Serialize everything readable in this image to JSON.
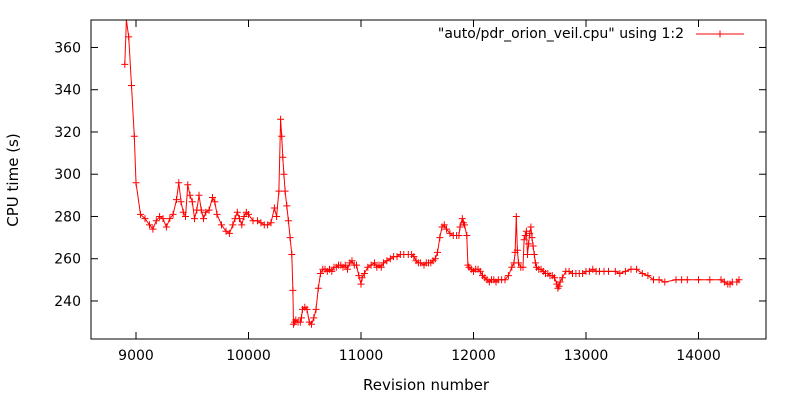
{
  "chart_data": {
    "type": "line",
    "xlabel": "Revision number",
    "ylabel": "CPU time (s)",
    "xlim": [
      8600,
      14600
    ],
    "ylim": [
      222,
      373
    ],
    "x_ticks": [
      9000,
      10000,
      11000,
      12000,
      13000,
      14000
    ],
    "y_ticks": [
      240,
      260,
      280,
      300,
      320,
      340,
      360
    ],
    "grid": false,
    "legend_position": "top-right",
    "line_color": "#ff0000",
    "series": [
      {
        "name": "\"auto/pdr_orion_veil.cpu\" using 1:2",
        "points": [
          [
            8900,
            352
          ],
          [
            8915,
            373
          ],
          [
            8935,
            365
          ],
          [
            8960,
            342
          ],
          [
            8985,
            318
          ],
          [
            9000,
            296
          ],
          [
            9040,
            281
          ],
          [
            9080,
            279
          ],
          [
            9120,
            276
          ],
          [
            9150,
            274
          ],
          [
            9180,
            278
          ],
          [
            9210,
            280
          ],
          [
            9240,
            279
          ],
          [
            9270,
            275
          ],
          [
            9300,
            279
          ],
          [
            9330,
            281
          ],
          [
            9360,
            288
          ],
          [
            9380,
            296
          ],
          [
            9400,
            287
          ],
          [
            9420,
            282
          ],
          [
            9440,
            280
          ],
          [
            9460,
            295
          ],
          [
            9480,
            290
          ],
          [
            9500,
            287
          ],
          [
            9520,
            279
          ],
          [
            9540,
            283
          ],
          [
            9560,
            290
          ],
          [
            9580,
            283
          ],
          [
            9600,
            279
          ],
          [
            9620,
            282
          ],
          [
            9650,
            283
          ],
          [
            9680,
            289
          ],
          [
            9700,
            287
          ],
          [
            9720,
            281
          ],
          [
            9760,
            276
          ],
          [
            9800,
            273
          ],
          [
            9830,
            272
          ],
          [
            9860,
            276
          ],
          [
            9880,
            279
          ],
          [
            9900,
            282
          ],
          [
            9920,
            279
          ],
          [
            9940,
            276
          ],
          [
            9960,
            280
          ],
          [
            9980,
            282
          ],
          [
            10000,
            281
          ],
          [
            10040,
            278
          ],
          [
            10080,
            278
          ],
          [
            10110,
            277
          ],
          [
            10140,
            276
          ],
          [
            10170,
            276
          ],
          [
            10200,
            277
          ],
          [
            10230,
            284
          ],
          [
            10250,
            280
          ],
          [
            10270,
            292
          ],
          [
            10285,
            326
          ],
          [
            10295,
            318
          ],
          [
            10305,
            308
          ],
          [
            10315,
            300
          ],
          [
            10325,
            292
          ],
          [
            10340,
            285
          ],
          [
            10355,
            278
          ],
          [
            10370,
            270
          ],
          [
            10385,
            262
          ],
          [
            10395,
            245
          ],
          [
            10400,
            229
          ],
          [
            10410,
            230
          ],
          [
            10420,
            231
          ],
          [
            10440,
            230
          ],
          [
            10460,
            230
          ],
          [
            10470,
            232
          ],
          [
            10480,
            236
          ],
          [
            10500,
            237
          ],
          [
            10520,
            236
          ],
          [
            10540,
            230
          ],
          [
            10560,
            229
          ],
          [
            10580,
            232
          ],
          [
            10600,
            236
          ],
          [
            10620,
            246
          ],
          [
            10640,
            253
          ],
          [
            10660,
            255
          ],
          [
            10680,
            255
          ],
          [
            10700,
            254
          ],
          [
            10720,
            255
          ],
          [
            10740,
            254
          ],
          [
            10760,
            256
          ],
          [
            10780,
            256
          ],
          [
            10800,
            257
          ],
          [
            10820,
            257
          ],
          [
            10840,
            256
          ],
          [
            10860,
            257
          ],
          [
            10880,
            255
          ],
          [
            10900,
            258
          ],
          [
            10920,
            259
          ],
          [
            10940,
            257
          ],
          [
            10960,
            257
          ],
          [
            10980,
            252
          ],
          [
            11000,
            248
          ],
          [
            11010,
            251
          ],
          [
            11030,
            253
          ],
          [
            11060,
            256
          ],
          [
            11090,
            257
          ],
          [
            11120,
            258
          ],
          [
            11140,
            256
          ],
          [
            11160,
            257
          ],
          [
            11180,
            256
          ],
          [
            11200,
            258
          ],
          [
            11230,
            259
          ],
          [
            11260,
            260
          ],
          [
            11290,
            261
          ],
          [
            11320,
            261
          ],
          [
            11350,
            262
          ],
          [
            11380,
            262
          ],
          [
            11420,
            262
          ],
          [
            11450,
            262
          ],
          [
            11470,
            261
          ],
          [
            11490,
            259
          ],
          [
            11510,
            258
          ],
          [
            11530,
            258
          ],
          [
            11560,
            257
          ],
          [
            11580,
            258
          ],
          [
            11600,
            258
          ],
          [
            11620,
            258
          ],
          [
            11640,
            259
          ],
          [
            11660,
            260
          ],
          [
            11680,
            263
          ],
          [
            11700,
            270
          ],
          [
            11720,
            275
          ],
          [
            11740,
            276
          ],
          [
            11760,
            274
          ],
          [
            11790,
            272
          ],
          [
            11820,
            271
          ],
          [
            11850,
            271
          ],
          [
            11870,
            271
          ],
          [
            11880,
            275
          ],
          [
            11900,
            279
          ],
          [
            11910,
            277
          ],
          [
            11920,
            276
          ],
          [
            11940,
            271
          ],
          [
            11950,
            257
          ],
          [
            11960,
            256
          ],
          [
            11980,
            255
          ],
          [
            12000,
            254
          ],
          [
            12020,
            255
          ],
          [
            12040,
            255
          ],
          [
            12060,
            254
          ],
          [
            12080,
            252
          ],
          [
            12100,
            251
          ],
          [
            12120,
            250
          ],
          [
            12140,
            249
          ],
          [
            12160,
            250
          ],
          [
            12180,
            250
          ],
          [
            12200,
            249
          ],
          [
            12220,
            250
          ],
          [
            12250,
            250
          ],
          [
            12280,
            250
          ],
          [
            12310,
            252
          ],
          [
            12340,
            256
          ],
          [
            12360,
            258
          ],
          [
            12370,
            263
          ],
          [
            12380,
            280
          ],
          [
            12390,
            264
          ],
          [
            12400,
            258
          ],
          [
            12420,
            256
          ],
          [
            12440,
            256
          ],
          [
            12450,
            269
          ],
          [
            12460,
            271
          ],
          [
            12470,
            273
          ],
          [
            12480,
            262
          ],
          [
            12490,
            267
          ],
          [
            12500,
            272
          ],
          [
            12510,
            275
          ],
          [
            12520,
            270
          ],
          [
            12530,
            266
          ],
          [
            12540,
            262
          ],
          [
            12550,
            258
          ],
          [
            12560,
            256
          ],
          [
            12580,
            255
          ],
          [
            12600,
            255
          ],
          [
            12620,
            254
          ],
          [
            12640,
            253
          ],
          [
            12660,
            253
          ],
          [
            12680,
            252
          ],
          [
            12700,
            252
          ],
          [
            12720,
            251
          ],
          [
            12740,
            248
          ],
          [
            12750,
            246
          ],
          [
            12760,
            247
          ],
          [
            12770,
            249
          ],
          [
            12790,
            251
          ],
          [
            12820,
            254
          ],
          [
            12850,
            254
          ],
          [
            12880,
            253
          ],
          [
            12910,
            253
          ],
          [
            12940,
            253
          ],
          [
            12970,
            253
          ],
          [
            13000,
            254
          ],
          [
            13030,
            254
          ],
          [
            13060,
            255
          ],
          [
            13090,
            254
          ],
          [
            13120,
            254
          ],
          [
            13160,
            254
          ],
          [
            13200,
            254
          ],
          [
            13260,
            254
          ],
          [
            13300,
            253
          ],
          [
            13350,
            254
          ],
          [
            13400,
            255
          ],
          [
            13450,
            255
          ],
          [
            13500,
            253
          ],
          [
            13550,
            252
          ],
          [
            13600,
            250
          ],
          [
            13650,
            250
          ],
          [
            13700,
            249
          ],
          [
            13800,
            250
          ],
          [
            13850,
            250
          ],
          [
            13900,
            250
          ],
          [
            14000,
            250
          ],
          [
            14100,
            250
          ],
          [
            14200,
            250
          ],
          [
            14230,
            249
          ],
          [
            14260,
            248
          ],
          [
            14280,
            248
          ],
          [
            14300,
            249
          ],
          [
            14340,
            249
          ],
          [
            14360,
            250
          ]
        ]
      }
    ]
  }
}
